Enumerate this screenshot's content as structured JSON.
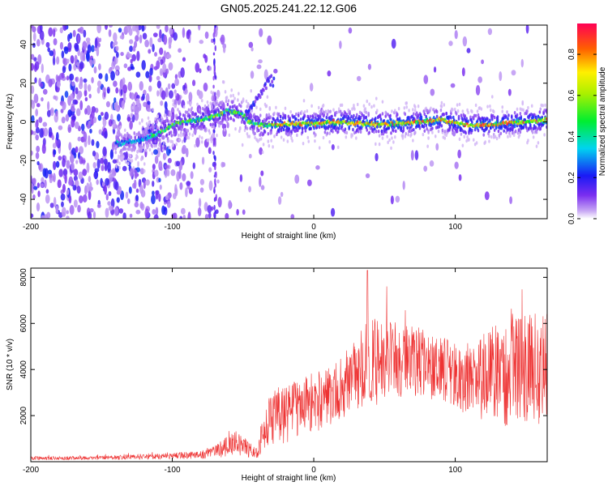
{
  "title": "GN05.2025.241.22.12.G06",
  "colors": {
    "line": "#ee3333",
    "axis": "#000000"
  },
  "chart_data": [
    {
      "type": "heatmap",
      "name": "spectrogram",
      "xlabel": "Height of straight line (km)",
      "ylabel": "Frequency (Hz)",
      "xlim": [
        -200,
        165
      ],
      "ylim": [
        -50,
        50
      ],
      "x_ticks": [
        -200,
        -100,
        0,
        100
      ],
      "y_ticks": [
        -40,
        -20,
        0,
        20,
        40
      ],
      "colorbar": {
        "label": "Normalized spectral amplitude",
        "range": [
          0,
          0.95
        ],
        "ticks": [
          "0.0",
          "0.2",
          "0.4",
          "0.6",
          "0.8"
        ],
        "tick_values": [
          0,
          0.2,
          0.4,
          0.6,
          0.8
        ],
        "colormap": "rainbow (purple-blue-cyan-green-yellow-red)"
      },
      "ridge": [
        {
          "x": -135,
          "f": -11
        },
        {
          "x": -120,
          "f": -9
        },
        {
          "x": -105,
          "f": -4
        },
        {
          "x": -95,
          "f": 0
        },
        {
          "x": -80,
          "f": 1
        },
        {
          "x": -70,
          "f": 3
        },
        {
          "x": -60,
          "f": 6
        },
        {
          "x": -50,
          "f": 4
        },
        {
          "x": -45,
          "f": 0
        },
        {
          "x": -35,
          "f": -2
        },
        {
          "x": -20,
          "f": -1
        },
        {
          "x": 0,
          "f": -1
        },
        {
          "x": 20,
          "f": 0
        },
        {
          "x": 40,
          "f": -1
        },
        {
          "x": 60,
          "f": -1
        },
        {
          "x": 75,
          "f": 0
        },
        {
          "x": 90,
          "f": 1
        },
        {
          "x": 110,
          "f": -2
        },
        {
          "x": 130,
          "f": -1
        },
        {
          "x": 150,
          "f": 0
        },
        {
          "x": 165,
          "f": 1
        }
      ],
      "branch": [
        {
          "x": -45,
          "f": 6
        },
        {
          "x": -40,
          "f": 12
        },
        {
          "x": -35,
          "f": 18
        },
        {
          "x": -30,
          "f": 22
        }
      ]
    },
    {
      "type": "line",
      "name": "snr",
      "xlabel": "Height of straight line (km)",
      "ylabel": "SNR (10 * v/v)",
      "xlim": [
        -200,
        165
      ],
      "ylim": [
        0,
        8400
      ],
      "x_ticks": [
        -200,
        -100,
        0,
        100
      ],
      "y_ticks": [
        2000,
        4000,
        6000,
        8000
      ],
      "envelope": [
        {
          "x": -200,
          "mean": 150,
          "amp": 80
        },
        {
          "x": -150,
          "mean": 170,
          "amp": 90
        },
        {
          "x": -100,
          "mean": 250,
          "amp": 130
        },
        {
          "x": -80,
          "mean": 300,
          "amp": 180
        },
        {
          "x": -70,
          "mean": 450,
          "amp": 300
        },
        {
          "x": -55,
          "mean": 800,
          "amp": 550
        },
        {
          "x": -40,
          "mean": 350,
          "amp": 200
        },
        {
          "x": -36,
          "mean": 1200,
          "amp": 800
        },
        {
          "x": -30,
          "mean": 1900,
          "amp": 1300
        },
        {
          "x": -20,
          "mean": 2100,
          "amp": 1300
        },
        {
          "x": 0,
          "mean": 2500,
          "amp": 1300
        },
        {
          "x": 20,
          "mean": 3200,
          "amp": 1400
        },
        {
          "x": 30,
          "mean": 3900,
          "amp": 1600
        },
        {
          "x": 40,
          "mean": 4300,
          "amp": 1900
        },
        {
          "x": 60,
          "mean": 4500,
          "amp": 1800
        },
        {
          "x": 80,
          "mean": 4200,
          "amp": 1500
        },
        {
          "x": 100,
          "mean": 3800,
          "amp": 1400
        },
        {
          "x": 110,
          "mean": 3600,
          "amp": 1700
        },
        {
          "x": 130,
          "mean": 3800,
          "amp": 2200
        },
        {
          "x": 150,
          "mean": 3900,
          "amp": 2500
        },
        {
          "x": 165,
          "mean": 4100,
          "amp": 2700
        }
      ],
      "peak": {
        "x": 38,
        "y": 8300
      }
    }
  ]
}
